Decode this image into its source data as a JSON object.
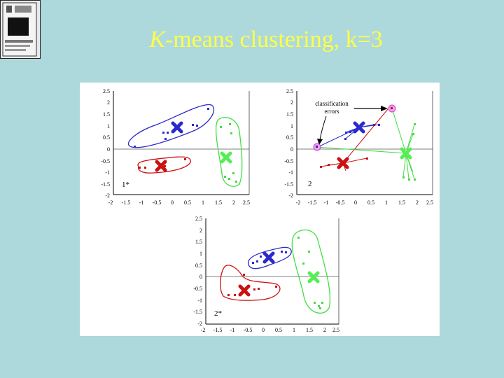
{
  "slide": {
    "title_italic": "K",
    "title_rest": "-means clustering, k=3"
  },
  "thumbnail": {
    "icon": "sd-card-icon"
  },
  "plots": [
    {
      "id": "1*",
      "label": "1*",
      "yticks": [
        "2.5",
        "2",
        "1.5",
        "1",
        "0.5",
        "0",
        "-0.5",
        "-1",
        "-1.5",
        "-2"
      ],
      "xticks": [
        "-2",
        "-1.5",
        "-1",
        "-0.5",
        "0",
        "0.5",
        "1",
        "1.5",
        "2",
        "2.5"
      ]
    },
    {
      "id": "2",
      "label": "2",
      "annotation": [
        "classification",
        "errors"
      ],
      "yticks": [
        "2.5",
        "2",
        "1.5",
        "1",
        "0.5",
        "0",
        "-0.5",
        "-1",
        "-1.5",
        "-2"
      ],
      "xticks": [
        "-2",
        "-1.5",
        "-1",
        "-0.5",
        "0",
        "0.5",
        "1",
        "1.5",
        "2",
        "2.5"
      ]
    },
    {
      "id": "2*",
      "label": "2*",
      "yticks": [
        "2.5",
        "2",
        "1.5",
        "1",
        "0.5",
        "0",
        "-0.5",
        "-1",
        "-1.5",
        "-2"
      ],
      "xticks": [
        "-2",
        "-1.5",
        "-1",
        "-0.5",
        "0",
        "0.5",
        "1",
        "1.5",
        "2",
        "2.5"
      ]
    }
  ],
  "colors": {
    "blue": "#2a2acc",
    "red": "#cc1111",
    "green": "#44dd44",
    "magenta": "#cc44cc"
  }
}
